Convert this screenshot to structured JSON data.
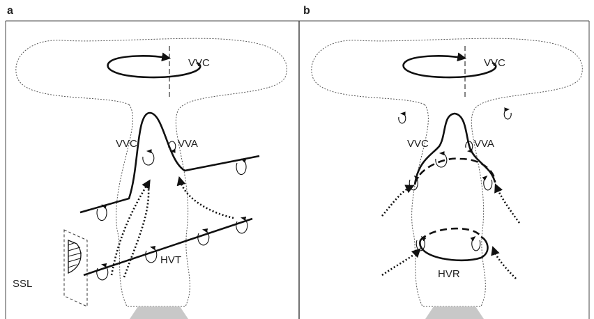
{
  "panels": [
    {
      "label": "a",
      "annotations": [
        "VVC",
        "VVC",
        "VVA",
        "HVT",
        "SSL"
      ]
    },
    {
      "label": "b",
      "annotations": [
        "VVC",
        "VVC",
        "VVA",
        "HVR"
      ]
    }
  ]
}
